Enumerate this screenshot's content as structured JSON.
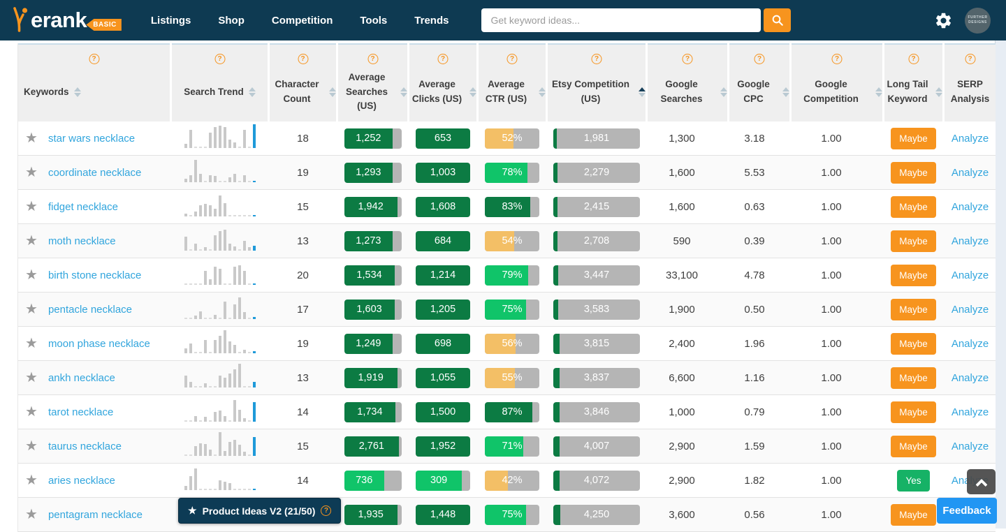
{
  "navbar": {
    "logo_text": "erank",
    "logo_badge": "BASIC",
    "items": [
      "Listings",
      "Shop",
      "Competition",
      "Tools",
      "Trends"
    ],
    "search_placeholder": "Get keyword ideas...",
    "avatar_text_line1": "FURTHER",
    "avatar_text_line2": "DESIGNS"
  },
  "footer": {
    "product_ideas_label": "Product Ideas V2 (21/50)",
    "feedback_label": "Feedback"
  },
  "colors": {
    "navy": "#0e3a52",
    "accent_orange": "#f7941e",
    "dark_green": "#0c7b43",
    "bright_green": "#10c469",
    "amber": "#f3bf66",
    "pill_gray": "#b5b5b5",
    "link_blue": "#31a5dd",
    "trend_blue": "#1f9ad9",
    "yes_green": "#16b266",
    "feedback_blue": "#2196f3"
  },
  "table": {
    "columns": [
      {
        "label": "Keywords",
        "help": true,
        "sort": "both",
        "align": "left"
      },
      {
        "label": "Search Trend",
        "help": true,
        "sort": "both"
      },
      {
        "label": "Character Count",
        "help": true,
        "sort": "both"
      },
      {
        "label": "Average Searches (US)",
        "help": true,
        "sort": "both"
      },
      {
        "label": "Average Clicks (US)",
        "help": true,
        "sort": "both"
      },
      {
        "label": "Average CTR (US)",
        "help": true,
        "sort": "both"
      },
      {
        "label": "Etsy Competition (US)",
        "help": true,
        "sort": "asc"
      },
      {
        "label": "Google Searches",
        "help": true,
        "sort": "both"
      },
      {
        "label": "Google CPC",
        "help": true,
        "sort": "both"
      },
      {
        "label": "Google Competition",
        "help": true,
        "sort": "both"
      },
      {
        "label": "Long Tail Keyword",
        "help": true,
        "sort": "both"
      },
      {
        "label": "SERP Analysis",
        "help": true,
        "sort": "none"
      }
    ],
    "rows": [
      {
        "keyword": "star wars necklace",
        "char_count": "18",
        "searches": {
          "value": "1,252",
          "fill": 85,
          "color": "dark"
        },
        "clicks": {
          "value": "653",
          "fill": 100,
          "color": "dark"
        },
        "ctr": {
          "value": "52%",
          "fill": 52,
          "color": "amber"
        },
        "etsy": {
          "value": "1,981",
          "fill": 4
        },
        "g_searches": "1,300",
        "g_cpc": "3.18",
        "g_comp": "1.00",
        "long_tail": {
          "label": "Maybe",
          "type": "maybe"
        },
        "serp": "Analyze",
        "trend": [
          6,
          26,
          0,
          0,
          0,
          22,
          30,
          32,
          30,
          12,
          8,
          0,
          26,
          0,
          34
        ]
      },
      {
        "keyword": "coordinate necklace",
        "char_count": "19",
        "searches": {
          "value": "1,293",
          "fill": 85,
          "color": "dark"
        },
        "clicks": {
          "value": "1,003",
          "fill": 100,
          "color": "dark"
        },
        "ctr": {
          "value": "78%",
          "fill": 78,
          "color": "bright"
        },
        "etsy": {
          "value": "2,279",
          "fill": 5
        },
        "g_searches": "1,600",
        "g_cpc": "5.53",
        "g_comp": "1.00",
        "long_tail": {
          "label": "Maybe",
          "type": "maybe"
        },
        "serp": "Analyze",
        "trend": [
          5,
          10,
          32,
          12,
          0,
          10,
          9,
          0,
          0,
          7,
          12,
          0,
          10,
          0,
          2
        ]
      },
      {
        "keyword": "fidget necklace",
        "char_count": "15",
        "searches": {
          "value": "1,942",
          "fill": 93,
          "color": "dark"
        },
        "clicks": {
          "value": "1,608",
          "fill": 100,
          "color": "dark"
        },
        "ctr": {
          "value": "83%",
          "fill": 83,
          "color": "dark"
        },
        "etsy": {
          "value": "2,415",
          "fill": 5
        },
        "g_searches": "1,600",
        "g_cpc": "0.63",
        "g_comp": "1.00",
        "long_tail": {
          "label": "Maybe",
          "type": "maybe"
        },
        "serp": "Analyze",
        "trend": [
          4,
          0,
          7,
          16,
          18,
          16,
          11,
          30,
          19,
          0,
          0,
          0,
          0,
          0,
          2
        ]
      },
      {
        "keyword": "moth necklace",
        "char_count": "13",
        "searches": {
          "value": "1,273",
          "fill": 85,
          "color": "dark"
        },
        "clicks": {
          "value": "684",
          "fill": 100,
          "color": "dark"
        },
        "ctr": {
          "value": "54%",
          "fill": 54,
          "color": "amber"
        },
        "etsy": {
          "value": "2,708",
          "fill": 5
        },
        "g_searches": "590",
        "g_cpc": "0.39",
        "g_comp": "1.00",
        "long_tail": {
          "label": "Maybe",
          "type": "maybe"
        },
        "serp": "Analyze",
        "trend": [
          20,
          0,
          10,
          0,
          5,
          0,
          22,
          28,
          30,
          10,
          6,
          0,
          14,
          5,
          7
        ]
      },
      {
        "keyword": "birth stone necklace",
        "char_count": "20",
        "searches": {
          "value": "1,534",
          "fill": 88,
          "color": "dark"
        },
        "clicks": {
          "value": "1,214",
          "fill": 100,
          "color": "dark"
        },
        "ctr": {
          "value": "79%",
          "fill": 79,
          "color": "bright"
        },
        "etsy": {
          "value": "3,447",
          "fill": 6
        },
        "g_searches": "33,100",
        "g_cpc": "4.78",
        "g_comp": "1.00",
        "long_tail": {
          "label": "Maybe",
          "type": "maybe"
        },
        "serp": "Analyze",
        "trend": [
          0,
          0,
          0,
          0,
          20,
          8,
          26,
          23,
          0,
          0,
          26,
          28,
          20,
          0,
          2
        ]
      },
      {
        "keyword": "pentacle necklace",
        "char_count": "17",
        "searches": {
          "value": "1,603",
          "fill": 88,
          "color": "dark"
        },
        "clicks": {
          "value": "1,205",
          "fill": 100,
          "color": "dark"
        },
        "ctr": {
          "value": "75%",
          "fill": 75,
          "color": "bright"
        },
        "etsy": {
          "value": "3,583",
          "fill": 6
        },
        "g_searches": "1,900",
        "g_cpc": "0.50",
        "g_comp": "1.00",
        "long_tail": {
          "label": "Maybe",
          "type": "maybe"
        },
        "serp": "Analyze",
        "trend": [
          0,
          0,
          5,
          11,
          0,
          0,
          6,
          0,
          25,
          0,
          21,
          31,
          10,
          0,
          3
        ]
      },
      {
        "keyword": "moon phase necklace",
        "char_count": "19",
        "searches": {
          "value": "1,249",
          "fill": 85,
          "color": "dark"
        },
        "clicks": {
          "value": "698",
          "fill": 100,
          "color": "dark"
        },
        "ctr": {
          "value": "56%",
          "fill": 56,
          "color": "amber"
        },
        "etsy": {
          "value": "3,815",
          "fill": 7
        },
        "g_searches": "2,400",
        "g_cpc": "1.96",
        "g_comp": "1.00",
        "long_tail": {
          "label": "Maybe",
          "type": "maybe"
        },
        "serp": "Analyze",
        "trend": [
          7,
          14,
          0,
          0,
          19,
          0,
          19,
          25,
          33,
          17,
          12,
          0,
          5,
          0,
          3
        ]
      },
      {
        "keyword": "ankh necklace",
        "char_count": "13",
        "searches": {
          "value": "1,919",
          "fill": 93,
          "color": "dark"
        },
        "clicks": {
          "value": "1,055",
          "fill": 100,
          "color": "dark"
        },
        "ctr": {
          "value": "55%",
          "fill": 55,
          "color": "amber"
        },
        "etsy": {
          "value": "3,837",
          "fill": 7
        },
        "g_searches": "6,600",
        "g_cpc": "1.16",
        "g_comp": "1.00",
        "long_tail": {
          "label": "Maybe",
          "type": "maybe"
        },
        "serp": "Analyze",
        "trend": [
          17,
          8,
          0,
          0,
          6,
          0,
          0,
          17,
          14,
          20,
          26,
          34,
          0,
          0,
          8
        ]
      },
      {
        "keyword": "tarot necklace",
        "char_count": "14",
        "searches": {
          "value": "1,734",
          "fill": 90,
          "color": "dark"
        },
        "clicks": {
          "value": "1,500",
          "fill": 100,
          "color": "dark"
        },
        "ctr": {
          "value": "87%",
          "fill": 87,
          "color": "dark"
        },
        "etsy": {
          "value": "3,846",
          "fill": 7
        },
        "g_searches": "1,000",
        "g_cpc": "0.79",
        "g_comp": "1.00",
        "long_tail": {
          "label": "Maybe",
          "type": "maybe"
        },
        "serp": "Analyze",
        "trend": [
          0,
          0,
          8,
          0,
          7,
          0,
          14,
          16,
          8,
          0,
          31,
          17,
          5,
          0,
          28
        ]
      },
      {
        "keyword": "taurus necklace",
        "char_count": "15",
        "searches": {
          "value": "2,761",
          "fill": 96,
          "color": "dark"
        },
        "clicks": {
          "value": "1,952",
          "fill": 100,
          "color": "dark"
        },
        "ctr": {
          "value": "71%",
          "fill": 71,
          "color": "bright"
        },
        "etsy": {
          "value": "4,007",
          "fill": 7
        },
        "g_searches": "2,900",
        "g_cpc": "1.59",
        "g_comp": "1.00",
        "long_tail": {
          "label": "Maybe",
          "type": "maybe"
        },
        "serp": "Analyze",
        "trend": [
          0,
          0,
          14,
          18,
          17,
          9,
          0,
          34,
          7,
          20,
          23,
          16,
          6,
          0,
          27
        ]
      },
      {
        "keyword": "aries necklace",
        "char_count": "14",
        "searches": {
          "value": "736",
          "fill": 70,
          "color": "bright"
        },
        "clicks": {
          "value": "309",
          "fill": 85,
          "color": "bright"
        },
        "ctr": {
          "value": "42%",
          "fill": 42,
          "color": "amber"
        },
        "etsy": {
          "value": "4,072",
          "fill": 7
        },
        "g_searches": "2,900",
        "g_cpc": "1.82",
        "g_comp": "1.00",
        "long_tail": {
          "label": "Yes",
          "type": "yes"
        },
        "serp": "Analyze",
        "trend": [
          6,
          20,
          31,
          0,
          0,
          0,
          0,
          14,
          12,
          10,
          0,
          0,
          0,
          0,
          2
        ]
      },
      {
        "keyword": "pentagram necklace",
        "char_count": "",
        "searches": {
          "value": "1,935",
          "fill": 93,
          "color": "dark"
        },
        "clicks": {
          "value": "1,448",
          "fill": 100,
          "color": "dark"
        },
        "ctr": {
          "value": "75%",
          "fill": 75,
          "color": "bright"
        },
        "etsy": {
          "value": "4,250",
          "fill": 8
        },
        "g_searches": "3,600",
        "g_cpc": "0.56",
        "g_comp": "1.00",
        "long_tail": {
          "label": "Maybe",
          "type": "maybe"
        },
        "serp": "",
        "trend": []
      }
    ]
  }
}
